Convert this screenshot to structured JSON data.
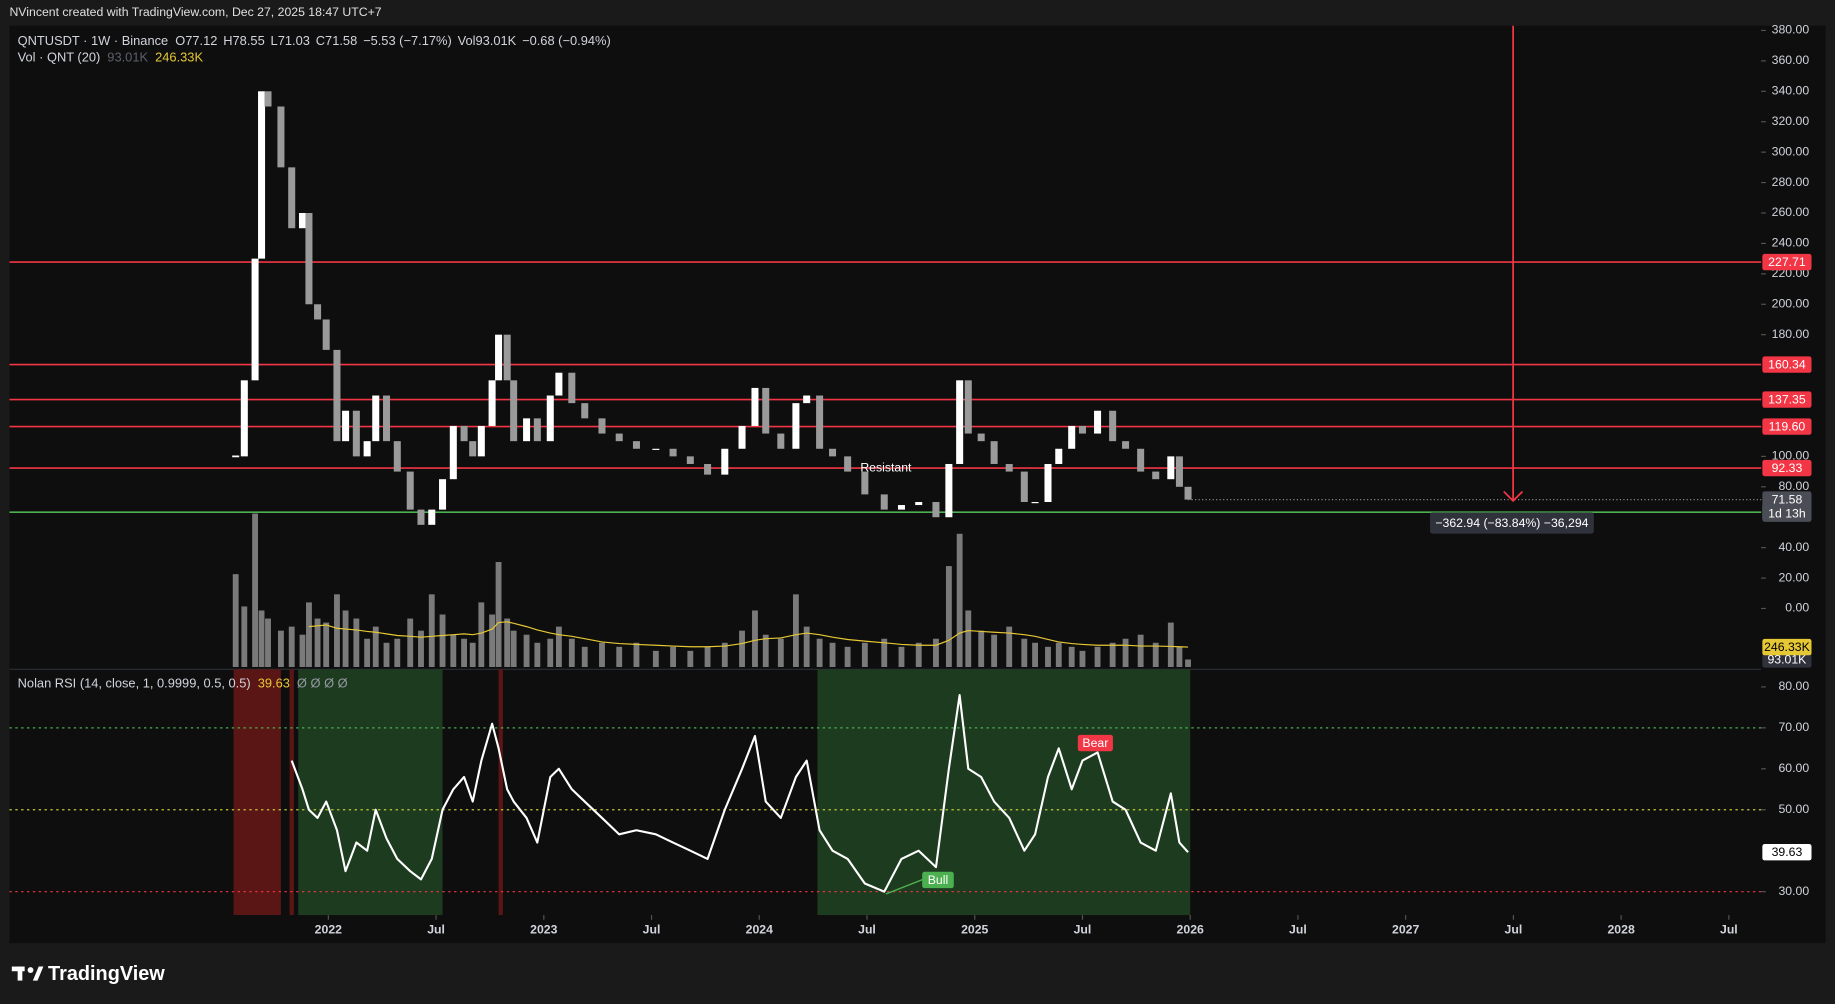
{
  "attribution": "NVincent created with TradingView.com, Dec 27, 2025 18:47 UTC+7",
  "brand": "TradingView",
  "chart_data": [
    {
      "type": "candlestick",
      "title": "QNTUSDT · 1W · Binance",
      "legend": [
        "O77.12",
        "H78.55",
        "L71.03",
        "C71.58",
        "−5.53 (−7.17%)",
        "Vol93.01K",
        "−0.68 (−0.94%)"
      ],
      "annotations": [
        "Resistant"
      ],
      "measure": "−362.94 (−83.84%) −36,294",
      "countdown": "1d 13h",
      "colors": {
        "up": "#ffffff",
        "down": "#9a9a9a"
      },
      "grid": false,
      "xlim": [
        2020.52,
        2028.65
      ],
      "xticks": [
        {
          "value": 2022,
          "label": "2022"
        },
        {
          "value": 2022.5,
          "label": "Jul"
        },
        {
          "value": 2023,
          "label": "2023"
        },
        {
          "value": 2023.5,
          "label": "Jul"
        },
        {
          "value": 2024,
          "label": "2024"
        },
        {
          "value": 2024.5,
          "label": "Jul"
        },
        {
          "value": 2025,
          "label": "2025"
        },
        {
          "value": 2025.5,
          "label": "Jul"
        },
        {
          "value": 2026,
          "label": "2026"
        },
        {
          "value": 2026.5,
          "label": "Jul"
        },
        {
          "value": 2027,
          "label": "2027"
        },
        {
          "value": 2027.5,
          "label": "Jul"
        },
        {
          "value": 2028,
          "label": "2028"
        },
        {
          "value": 2028.5,
          "label": "Jul"
        }
      ],
      "ylim": [
        -40,
        383.1
      ],
      "yticks": [
        {
          "value": 380,
          "label": "380.00"
        },
        {
          "value": 360,
          "label": "360.00"
        },
        {
          "value": 340,
          "label": "340.00"
        },
        {
          "value": 320,
          "label": "320.00"
        },
        {
          "value": 300,
          "label": "300.00"
        },
        {
          "value": 280,
          "label": "280.00"
        },
        {
          "value": 260,
          "label": "260.00"
        },
        {
          "value": 240,
          "label": "240.00"
        },
        {
          "value": 220,
          "label": "220.00"
        },
        {
          "value": 200,
          "label": "200.00"
        },
        {
          "value": 180,
          "label": "180.00"
        },
        {
          "value": 100,
          "label": "100.00"
        },
        {
          "value": 80,
          "label": "80.00"
        },
        {
          "value": 40,
          "label": "40.00"
        },
        {
          "value": 20,
          "label": "20.00"
        },
        {
          "value": 0,
          "label": "0.00"
        }
      ],
      "levels": [
        {
          "value": 227.71,
          "color": "#f23645"
        },
        {
          "value": 160.34,
          "color": "#f23645"
        },
        {
          "value": 137.35,
          "color": "#f23645"
        },
        {
          "value": 119.6,
          "label": "119.60",
          "color": "#f23645"
        },
        {
          "value": 92.33,
          "color": "#f23645"
        },
        {
          "value": 63.32,
          "color": "#4caf50"
        }
      ],
      "x": [
        2021.57,
        2021.61,
        2021.66,
        2021.69,
        2021.72,
        2021.78,
        2021.83,
        2021.88,
        2021.91,
        2021.95,
        2021.99,
        2022.04,
        2022.08,
        2022.13,
        2022.18,
        2022.22,
        2022.27,
        2022.32,
        2022.38,
        2022.43,
        2022.48,
        2022.53,
        2022.58,
        2022.63,
        2022.67,
        2022.71,
        2022.76,
        2022.79,
        2022.83,
        2022.86,
        2022.92,
        2022.97,
        2023.03,
        2023.07,
        2023.13,
        2023.19,
        2023.27,
        2023.35,
        2023.43,
        2023.52,
        2023.6,
        2023.68,
        2023.76,
        2023.84,
        2023.92,
        2023.98,
        2024.03,
        2024.1,
        2024.17,
        2024.22,
        2024.28,
        2024.34,
        2024.41,
        2024.49,
        2024.58,
        2024.66,
        2024.74,
        2024.82,
        2024.88,
        2024.93,
        2024.97,
        2025.03,
        2025.09,
        2025.16,
        2025.23,
        2025.28,
        2025.34,
        2025.39,
        2025.45,
        2025.5,
        2025.57,
        2025.64,
        2025.7,
        2025.77,
        2025.84,
        2025.91,
        2025.95,
        2025.99
      ],
      "series": [
        {
          "name": "QNTUSDT",
          "color": "#ffffff",
          "values": [
            100,
            150,
            230,
            340,
            330,
            290,
            250,
            260,
            200,
            190,
            170,
            110,
            130,
            100,
            110,
            140,
            110,
            90,
            65,
            55,
            65,
            85,
            120,
            110,
            100,
            120,
            150,
            180,
            150,
            110,
            125,
            110,
            140,
            155,
            135,
            125,
            115,
            110,
            105,
            105,
            100,
            95,
            88,
            105,
            120,
            145,
            115,
            105,
            135,
            140,
            105,
            100,
            90,
            75,
            65,
            68,
            70,
            60,
            95,
            150,
            115,
            110,
            95,
            90,
            70,
            70,
            95,
            105,
            120,
            115,
            130,
            110,
            105,
            90,
            85,
            100,
            80,
            71.58
          ]
        }
      ]
    },
    {
      "type": "bar",
      "title": "Vol · QNT (20)",
      "xlim": [
        2020.52,
        2028.65
      ],
      "ylim": [
        0,
        7942
      ],
      "x": [
        2021.57,
        2021.61,
        2021.66,
        2021.69,
        2021.72,
        2021.78,
        2021.83,
        2021.88,
        2021.91,
        2021.95,
        2021.99,
        2022.04,
        2022.08,
        2022.13,
        2022.18,
        2022.22,
        2022.27,
        2022.32,
        2022.38,
        2022.43,
        2022.48,
        2022.53,
        2022.58,
        2022.63,
        2022.67,
        2022.71,
        2022.76,
        2022.79,
        2022.83,
        2022.86,
        2022.92,
        2022.97,
        2023.03,
        2023.07,
        2023.13,
        2023.19,
        2023.27,
        2023.35,
        2023.43,
        2023.52,
        2023.6,
        2023.68,
        2023.76,
        2023.84,
        2023.92,
        2023.98,
        2024.03,
        2024.1,
        2024.17,
        2024.22,
        2024.28,
        2024.34,
        2024.41,
        2024.49,
        2024.58,
        2024.66,
        2024.74,
        2024.82,
        2024.88,
        2024.93,
        2024.97,
        2025.03,
        2025.09,
        2025.16,
        2025.23,
        2025.28,
        2025.34,
        2025.39,
        2025.45,
        2025.5,
        2025.57,
        2025.64,
        2025.7,
        2025.77,
        2025.84,
        2025.91,
        2025.95,
        2025.99
      ],
      "series": [
        {
          "name": "Vol",
          "color": "#7a7a7a",
          "last_label": "93.01K",
          "values": [
            1150,
            750,
            1900,
            700,
            600,
            450,
            500,
            400,
            800,
            600,
            550,
            900,
            700,
            600,
            350,
            500,
            300,
            350,
            600,
            450,
            900,
            650,
            400,
            350,
            300,
            800,
            650,
            1300,
            600,
            450,
            400,
            300,
            350,
            500,
            350,
            250,
            300,
            250,
            300,
            200,
            250,
            200,
            250,
            300,
            450,
            700,
            400,
            350,
            900,
            500,
            350,
            300,
            250,
            300,
            350,
            250,
            300,
            350,
            1250,
            1650,
            700,
            450,
            400,
            500,
            350,
            300,
            250,
            300,
            250,
            200,
            250,
            300,
            350,
            400,
            300,
            550,
            250,
            93.01
          ]
        },
        {
          "name": "MA",
          "type": "line",
          "color": "#e6c834",
          "last_label": "246.33K",
          "values": [
            null,
            null,
            null,
            null,
            null,
            null,
            null,
            null,
            500,
            510,
            520,
            480,
            470,
            460,
            440,
            430,
            410,
            390,
            380,
            370,
            380,
            390,
            400,
            410,
            400,
            420,
            470,
            550,
            560,
            540,
            500,
            460,
            420,
            400,
            380,
            350,
            310,
            290,
            280,
            270,
            260,
            250,
            250,
            260,
            290,
            330,
            350,
            360,
            400,
            420,
            400,
            370,
            340,
            320,
            300,
            280,
            270,
            270,
            330,
            420,
            450,
            440,
            430,
            420,
            400,
            380,
            340,
            310,
            290,
            280,
            270,
            270,
            270,
            260,
            260,
            255,
            250,
            246.33
          ]
        }
      ]
    },
    {
      "type": "line",
      "title": "Nolan RSI (14, close, 1, 0.9999, 0.5, 0.5)",
      "legend_extra": "Ø  Ø  Ø  Ø",
      "annotations": [
        "Bull",
        "Bear"
      ],
      "xlim": [
        2020.52,
        2028.65
      ],
      "ylim": [
        24.29,
        84.29
      ],
      "yticks": [
        {
          "value": 80,
          "label": "80.00"
        },
        {
          "value": 70,
          "label": "70.00"
        },
        {
          "value": 60,
          "label": "60.00"
        },
        {
          "value": 50,
          "label": "50.00"
        },
        {
          "value": 30,
          "label": "30.00"
        }
      ],
      "levels": [
        {
          "value": 70,
          "color": "#4caf50"
        },
        {
          "value": 50,
          "color": "#c9c93a"
        },
        {
          "value": 30,
          "color": "#f23645"
        }
      ],
      "zones": [
        {
          "from": 2021.56,
          "to": 2021.78,
          "color": "#5a1515"
        },
        {
          "from": 2021.82,
          "to": 2021.84,
          "color": "#5a1515"
        },
        {
          "from": 2021.86,
          "to": 2022.53,
          "color": "#1d3b1f"
        },
        {
          "from": 2022.79,
          "to": 2022.81,
          "color": "#5a1515"
        },
        {
          "from": 2024.27,
          "to": 2026.0,
          "color": "#1d3b1f"
        }
      ],
      "x": [
        2021.57,
        2021.61,
        2021.66,
        2021.69,
        2021.72,
        2021.78,
        2021.83,
        2021.88,
        2021.91,
        2021.95,
        2021.99,
        2022.04,
        2022.08,
        2022.13,
        2022.18,
        2022.22,
        2022.27,
        2022.32,
        2022.38,
        2022.43,
        2022.48,
        2022.53,
        2022.58,
        2022.63,
        2022.67,
        2022.71,
        2022.76,
        2022.79,
        2022.83,
        2022.86,
        2022.92,
        2022.97,
        2023.03,
        2023.07,
        2023.13,
        2023.19,
        2023.27,
        2023.35,
        2023.43,
        2023.52,
        2023.6,
        2023.68,
        2023.76,
        2023.84,
        2023.92,
        2023.98,
        2024.03,
        2024.1,
        2024.17,
        2024.22,
        2024.28,
        2024.34,
        2024.41,
        2024.49,
        2024.58,
        2024.66,
        2024.74,
        2024.82,
        2024.88,
        2024.93,
        2024.97,
        2025.03,
        2025.09,
        2025.16,
        2025.23,
        2025.28,
        2025.34,
        2025.39,
        2025.45,
        2025.5,
        2025.57,
        2025.64,
        2025.7,
        2025.77,
        2025.84,
        2025.91,
        2025.95,
        2025.99
      ],
      "series": [
        {
          "name": "RSI",
          "color": "#ffffff",
          "values": [
            null,
            null,
            null,
            null,
            null,
            null,
            62,
            55,
            50,
            48,
            52,
            45,
            35,
            42,
            40,
            50,
            43,
            38,
            35,
            33,
            38,
            50,
            55,
            58,
            52,
            62,
            71,
            65,
            55,
            52,
            48,
            42,
            58,
            60,
            55,
            52,
            48,
            44,
            45,
            44,
            42,
            40,
            38,
            50,
            60,
            68,
            52,
            48,
            58,
            62,
            45,
            40,
            38,
            32,
            30,
            38,
            40,
            36,
            60,
            78,
            60,
            58,
            52,
            48,
            40,
            44,
            58,
            65,
            55,
            62,
            64,
            52,
            50,
            42,
            40,
            54,
            42,
            39.63
          ]
        }
      ]
    }
  ]
}
